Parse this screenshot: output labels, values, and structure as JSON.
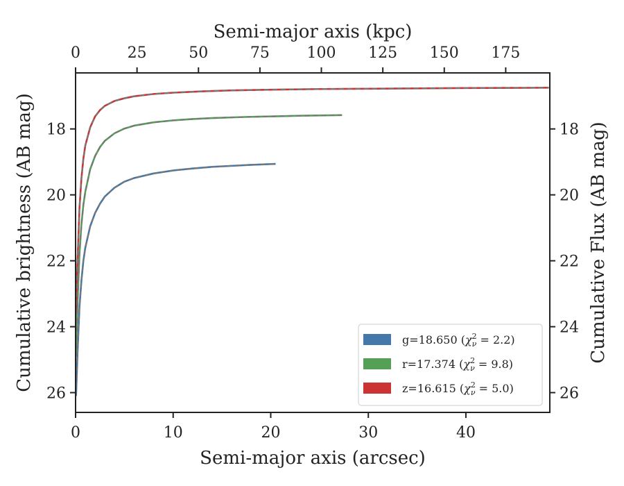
{
  "chart_data": {
    "type": "line",
    "xlabel": "Semi-major axis (arcsec)",
    "ylabel": "Cumulative brightness (AB mag)",
    "x2label": "Semi-major axis (kpc)",
    "y2label": "Cumulative Flux (AB mag)",
    "xlim": [
      0,
      48.6
    ],
    "ylim": [
      26.6,
      16.3
    ],
    "y_inverted": true,
    "x_ticks": [
      0,
      10,
      20,
      30,
      40
    ],
    "x_tick_labels": [
      "0",
      "10",
      "20",
      "30",
      "40"
    ],
    "y_ticks": [
      18,
      20,
      22,
      24,
      26
    ],
    "y_tick_labels": [
      "18",
      "20",
      "22",
      "24",
      "26"
    ],
    "x2_ticks": [
      0,
      25,
      50,
      75,
      100,
      125,
      150,
      175
    ],
    "x2_tick_labels": [
      "0",
      "25",
      "50",
      "75",
      "100",
      "125",
      "150",
      "175"
    ],
    "x2_per_x": 3.97,
    "grid": false,
    "legend_position": "lower-right",
    "model_line_color": "#777777",
    "series": [
      {
        "name": "g=18.650 (χ²_ν = 2.2)",
        "legend_prefix": "g=18.650 (",
        "legend_chi": "χ",
        "legend_sup": "2",
        "legend_sub": "ν",
        "legend_value": " = 2.2)",
        "color": "#4477aa",
        "x": [
          0.05,
          0.2,
          0.4,
          0.6,
          0.8,
          1.0,
          1.5,
          2.0,
          2.5,
          3.0,
          4.0,
          5.0,
          6.0,
          8.0,
          10.0,
          12.0,
          14.0,
          16.0,
          18.0,
          20.5
        ],
        "y": [
          26.1,
          24.8,
          23.4,
          22.6,
          22.0,
          21.6,
          20.95,
          20.55,
          20.27,
          20.05,
          19.78,
          19.6,
          19.49,
          19.35,
          19.26,
          19.2,
          19.15,
          19.12,
          19.09,
          19.06
        ]
      },
      {
        "name": "r=17.374 (χ²_ν = 9.8)",
        "legend_prefix": "r=17.374 (",
        "legend_chi": "χ",
        "legend_sup": "2",
        "legend_sub": "ν",
        "legend_value": " = 9.8)",
        "color": "#55a055",
        "x": [
          0.05,
          0.2,
          0.4,
          0.6,
          0.8,
          1.0,
          1.5,
          2.0,
          2.5,
          3.0,
          4.0,
          5.0,
          6.0,
          8.0,
          10.0,
          12.0,
          14.0,
          17.0,
          20.0,
          23.0,
          27.3
        ],
        "y": [
          24.9,
          23.3,
          21.8,
          20.9,
          20.3,
          19.9,
          19.22,
          18.82,
          18.55,
          18.36,
          18.13,
          17.99,
          17.9,
          17.8,
          17.74,
          17.7,
          17.67,
          17.64,
          17.62,
          17.6,
          17.58
        ]
      },
      {
        "name": "z=16.615 (χ²_ν = 5.0)",
        "legend_prefix": "z=16.615 (",
        "legend_chi": "χ",
        "legend_sup": "2",
        "legend_sub": "ν",
        "legend_value": " = 5.0)",
        "color": "#cc3333",
        "x": [
          0.05,
          0.2,
          0.4,
          0.6,
          0.8,
          1.0,
          1.5,
          2.0,
          2.5,
          3.0,
          4.0,
          5.0,
          6.0,
          8.0,
          10.0,
          13.0,
          16.0,
          20.0,
          25.0,
          30.0,
          35.0,
          40.0,
          45.0,
          48.5
        ],
        "y": [
          23.6,
          22.0,
          20.4,
          19.5,
          18.9,
          18.5,
          17.95,
          17.62,
          17.43,
          17.3,
          17.15,
          17.07,
          17.01,
          16.94,
          16.9,
          16.86,
          16.83,
          16.81,
          16.79,
          16.78,
          16.77,
          16.76,
          16.755,
          16.75
        ]
      }
    ]
  }
}
